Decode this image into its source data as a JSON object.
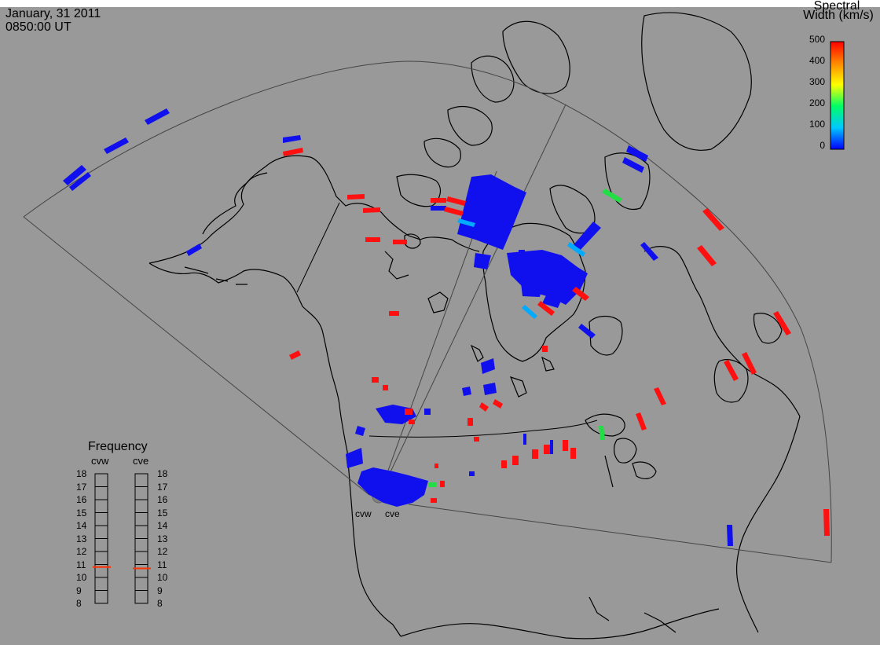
{
  "header": {
    "date": "January, 31 2011",
    "time": "0850:00 UT"
  },
  "legend": {
    "title_line1": "Spectral",
    "title_line2": "Width (km/s)",
    "ticks": [
      "500",
      "400",
      "300",
      "200",
      "100",
      "0"
    ],
    "range": [
      0,
      500
    ],
    "colors": [
      "#0000ff",
      "#00c8ff",
      "#00ff66",
      "#ffff00",
      "#ff8800",
      "#ff0000"
    ]
  },
  "frequency": {
    "title": "Frequency",
    "radars": [
      "cvw",
      "cve"
    ],
    "scale": [
      "18",
      "17",
      "16",
      "15",
      "14",
      "13",
      "12",
      "11",
      "10",
      "9",
      "8"
    ],
    "cvw_value": 10.8,
    "cve_value": 10.7
  },
  "radar_labels": [
    "cvw",
    "cve"
  ]
}
